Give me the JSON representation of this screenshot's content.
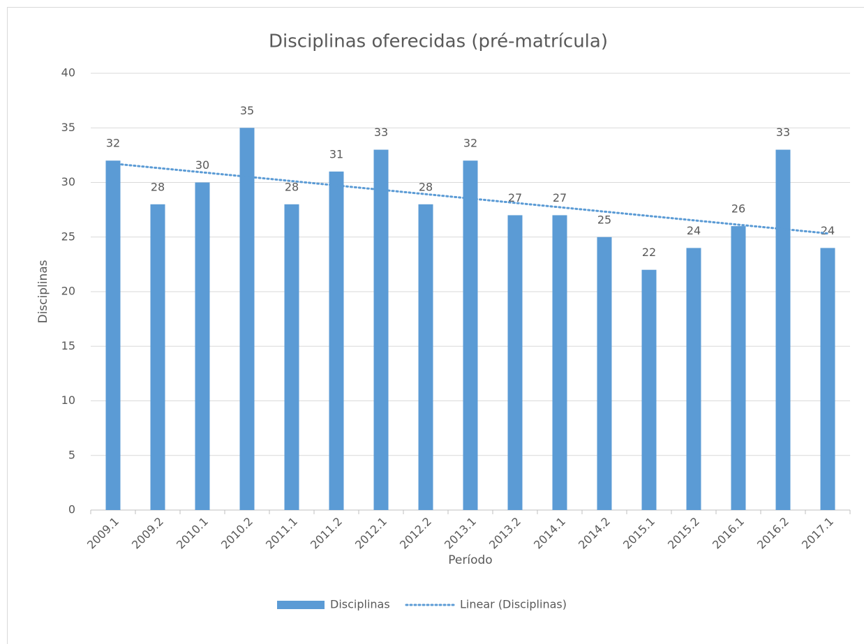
{
  "chart_data": {
    "type": "bar",
    "title": "Disciplinas oferecidas (pré-matrícula)",
    "x_label": "Período",
    "y_label": "Disciplinas",
    "categories": [
      "2009.1",
      "2009.2",
      "2010.1",
      "2010.2",
      "2011.1",
      "2011.2",
      "2012.1",
      "2012.2",
      "2013.1",
      "2013.2",
      "2014.1",
      "2014.2",
      "2015.1",
      "2015.2",
      "2016.1",
      "2016.2",
      "2017.1"
    ],
    "series": [
      {
        "name": "Disciplinas",
        "color": "#5b9bd5",
        "values": [
          32,
          28,
          30,
          35,
          28,
          31,
          33,
          28,
          32,
          27,
          27,
          25,
          22,
          24,
          26,
          33,
          24
        ]
      }
    ],
    "trendline": {
      "name": "Linear (Disciplinas)",
      "fit": "linear",
      "color": "#5b9bd5"
    },
    "ylim": [
      0,
      40
    ],
    "yticks": [
      0,
      5,
      10,
      15,
      20,
      25,
      30,
      35,
      40
    ],
    "grid": true,
    "legend": "bottom"
  }
}
